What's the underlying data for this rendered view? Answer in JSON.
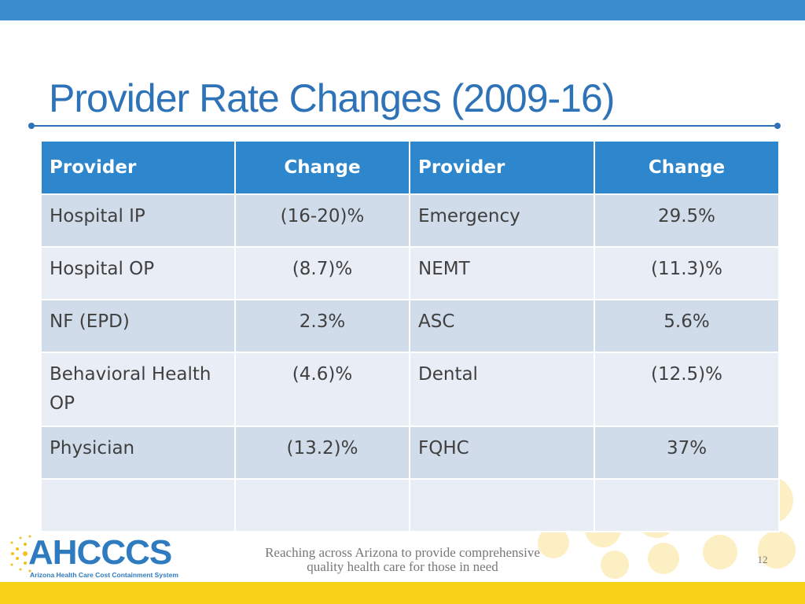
{
  "slide": {
    "title": "Provider Rate Changes (2009-16)",
    "page_number": "12",
    "tagline_line1": "Reaching across Arizona to provide comprehensive",
    "tagline_line2": "quality health care for those in need"
  },
  "logo": {
    "name": "AHCCCS",
    "subtitle": "Arizona Health Care Cost Containment System"
  },
  "table": {
    "headers": [
      "Provider",
      "Change",
      "Provider",
      "Change"
    ],
    "rows": [
      [
        "Hospital IP",
        "(16-20)%",
        "Emergency",
        "29.5%"
      ],
      [
        "Hospital OP",
        "(8.7)%",
        "NEMT",
        "(11.3)%"
      ],
      [
        "NF (EPD)",
        "2.3%",
        "ASC",
        "5.6%"
      ],
      [
        "Behavioral Health OP",
        "(4.6)%",
        "Dental",
        "(12.5)%"
      ],
      [
        "Physician",
        "(13.2)%",
        "FQHC",
        "37%"
      ],
      [
        "",
        "",
        "",
        ""
      ]
    ]
  },
  "colors": {
    "title": "#2e73b8",
    "header_fill": "#2e86cc",
    "row_odd": "#d0dcea",
    "row_even": "#e9eef6",
    "top_bar": "#3a8dcc",
    "bottom_bar": "#f7d117"
  }
}
